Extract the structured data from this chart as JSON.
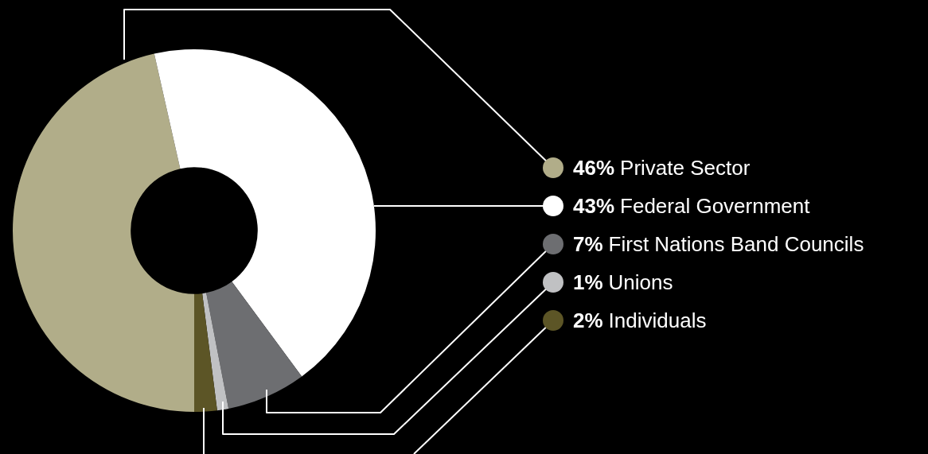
{
  "chart_data": {
    "type": "donut",
    "categories": [
      "Private Sector",
      "Federal Government",
      "First Nations Band Councils",
      "Unions",
      "Individuals"
    ],
    "values": [
      46,
      43,
      7,
      1,
      2
    ],
    "value_labels": [
      "46%",
      "43%",
      "7%",
      "1%",
      "2%"
    ],
    "colors": [
      "#b1ad89",
      "#ffffff",
      "#6d6e71",
      "#c0c1c3",
      "#5c5526"
    ],
    "legend": "right"
  }
}
